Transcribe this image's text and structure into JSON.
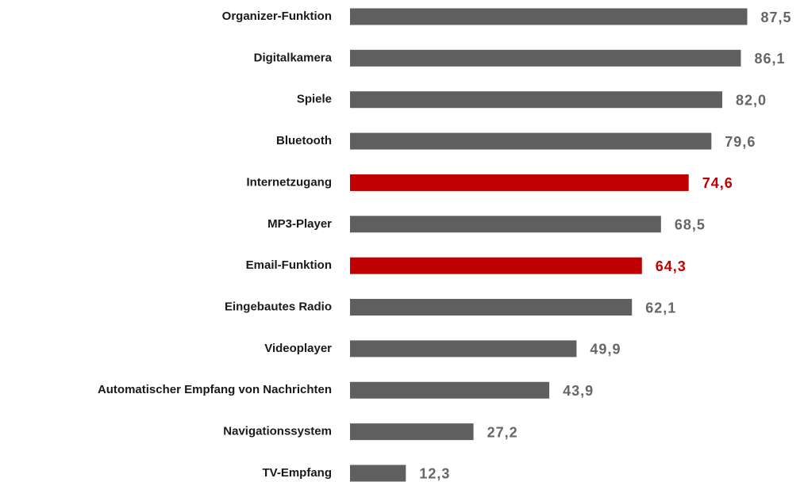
{
  "chart_data": {
    "type": "bar",
    "orientation": "horizontal",
    "categories": [
      "Organizer-Funktion",
      "Digitalkamera",
      "Spiele",
      "Bluetooth",
      "Internetzugang",
      "MP3-Player",
      "Email-Funktion",
      "Eingebautes Radio",
      "Videoplayer",
      "Automatischer Empfang von Nachrichten",
      "Navigationssystem",
      "TV-Empfang"
    ],
    "values": [
      87.5,
      86.1,
      82.0,
      79.6,
      74.6,
      68.5,
      64.3,
      62.1,
      49.9,
      43.9,
      27.2,
      12.3
    ],
    "value_labels": [
      "87,5",
      "86,1",
      "82,0",
      "79,6",
      "74,6",
      "68,5",
      "64,3",
      "62,1",
      "49,9",
      "43,9",
      "27,2",
      "12,3"
    ],
    "colors": [
      "#5f5f5f",
      "#5f5f5f",
      "#5f5f5f",
      "#5f5f5f",
      "#c00000",
      "#5f5f5f",
      "#c00000",
      "#5f5f5f",
      "#5f5f5f",
      "#5f5f5f",
      "#5f5f5f",
      "#5f5f5f"
    ],
    "label_colors": [
      "#666666",
      "#666666",
      "#666666",
      "#666666",
      "#c00000",
      "#666666",
      "#c00000",
      "#666666",
      "#666666",
      "#666666",
      "#666666",
      "#666666"
    ],
    "xlim": [
      0,
      100
    ]
  }
}
